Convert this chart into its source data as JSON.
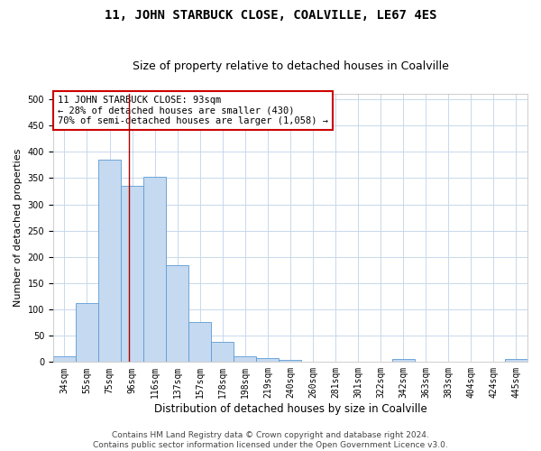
{
  "title": "11, JOHN STARBUCK CLOSE, COALVILLE, LE67 4ES",
  "subtitle": "Size of property relative to detached houses in Coalville",
  "xlabel": "Distribution of detached houses by size in Coalville",
  "ylabel": "Number of detached properties",
  "bin_labels": [
    "34sqm",
    "55sqm",
    "75sqm",
    "96sqm",
    "116sqm",
    "137sqm",
    "157sqm",
    "178sqm",
    "198sqm",
    "219sqm",
    "240sqm",
    "260sqm",
    "281sqm",
    "301sqm",
    "322sqm",
    "342sqm",
    "363sqm",
    "383sqm",
    "404sqm",
    "424sqm",
    "445sqm"
  ],
  "bar_heights": [
    11,
    112,
    385,
    335,
    352,
    184,
    76,
    38,
    11,
    7,
    4,
    0,
    0,
    0,
    0,
    5,
    0,
    0,
    0,
    0,
    5
  ],
  "bar_color": "#c5d9f0",
  "bar_edge_color": "#5b9bd5",
  "vline_bin_index": 2.85,
  "vline_color": "#aa0000",
  "annotation_line1": "11 JOHN STARBUCK CLOSE: 93sqm",
  "annotation_line2": "← 28% of detached houses are smaller (430)",
  "annotation_line3": "70% of semi-detached houses are larger (1,058) →",
  "ylim": [
    0,
    510
  ],
  "yticks": [
    0,
    50,
    100,
    150,
    200,
    250,
    300,
    350,
    400,
    450,
    500
  ],
  "background_color": "#ffffff",
  "grid_color": "#c8d8ec",
  "footer_line1": "Contains HM Land Registry data © Crown copyright and database right 2024.",
  "footer_line2": "Contains public sector information licensed under the Open Government Licence v3.0.",
  "title_fontsize": 10,
  "subtitle_fontsize": 9,
  "xlabel_fontsize": 8.5,
  "ylabel_fontsize": 8,
  "tick_fontsize": 7,
  "annotation_fontsize": 7.5,
  "footer_fontsize": 6.5
}
